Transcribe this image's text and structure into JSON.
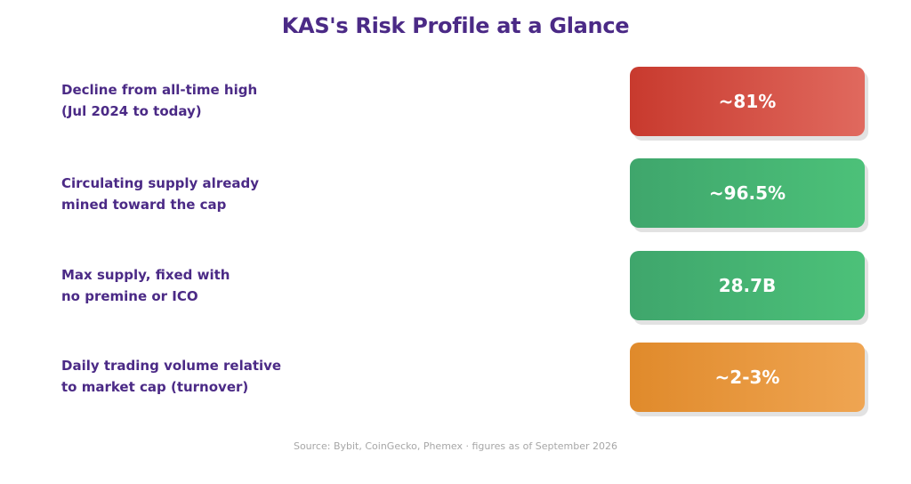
{
  "title": "KAS's Risk Profile at a Glance",
  "rows": [
    {
      "label_lines": [
        "Decline from all-time high",
        "(Jul 2024 to today)"
      ],
      "value": "~81%",
      "color_from": "#c83a2e",
      "color_to": "#e0695e"
    },
    {
      "label_lines": [
        "Circulating supply already",
        "mined toward the cap"
      ],
      "value": "~96.5%",
      "color_from": "#3fa66c",
      "color_to": "#4cc179"
    },
    {
      "label_lines": [
        "Max supply, fixed with",
        "no premine or ICO"
      ],
      "value": "28.7B",
      "color_from": "#3fa66c",
      "color_to": "#4cc179"
    },
    {
      "label_lines": [
        "Daily trading volume relative",
        "to market cap (turnover)"
      ],
      "value": "~2-3%",
      "color_from": "#e08a2b",
      "color_to": "#efa552"
    }
  ],
  "source": "Source: Bybit, CoinGecko, Phemex · figures as of September 2026"
}
